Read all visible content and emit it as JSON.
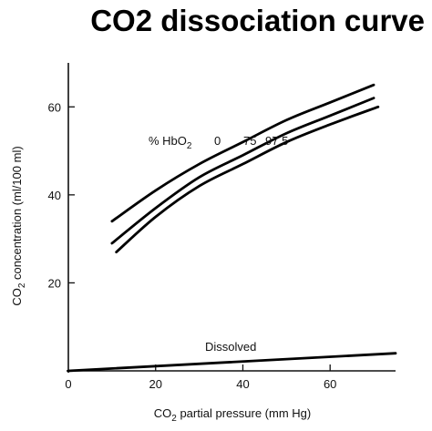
{
  "title": {
    "co": "CO",
    "sub": "2",
    "rest": " dissociation curve"
  },
  "chart_data": {
    "type": "line",
    "title": "CO2 dissociation curve",
    "xlabel": {
      "pre": "CO",
      "sub": "2",
      "post": " partial pressure (mm Hg)"
    },
    "ylabel": {
      "pre": "CO",
      "sub": "2",
      "post": " concentration (ml/100 ml)"
    },
    "xlim": [
      0,
      75
    ],
    "ylim": [
      0,
      70
    ],
    "xticks": [
      0,
      20,
      40,
      60
    ],
    "yticks": [
      20,
      40,
      60
    ],
    "grid": false,
    "legend_title": {
      "pre": "% HbO",
      "sub": "2"
    },
    "series": [
      {
        "name": "0",
        "x": [
          10,
          20,
          30,
          40,
          50,
          60,
          70
        ],
        "y": [
          34,
          41,
          47,
          52,
          57,
          61,
          65
        ]
      },
      {
        "name": "75",
        "x": [
          10,
          20,
          30,
          40,
          50,
          60,
          70
        ],
        "y": [
          29,
          37,
          44,
          49,
          54,
          58,
          62
        ]
      },
      {
        "name": "97.5",
        "x": [
          11,
          20,
          30,
          40,
          50,
          60,
          71
        ],
        "y": [
          27,
          35,
          42,
          47,
          52,
          56,
          60
        ]
      },
      {
        "name": "Dissolved",
        "x": [
          0,
          75
        ],
        "y": [
          0,
          4
        ]
      }
    ]
  }
}
